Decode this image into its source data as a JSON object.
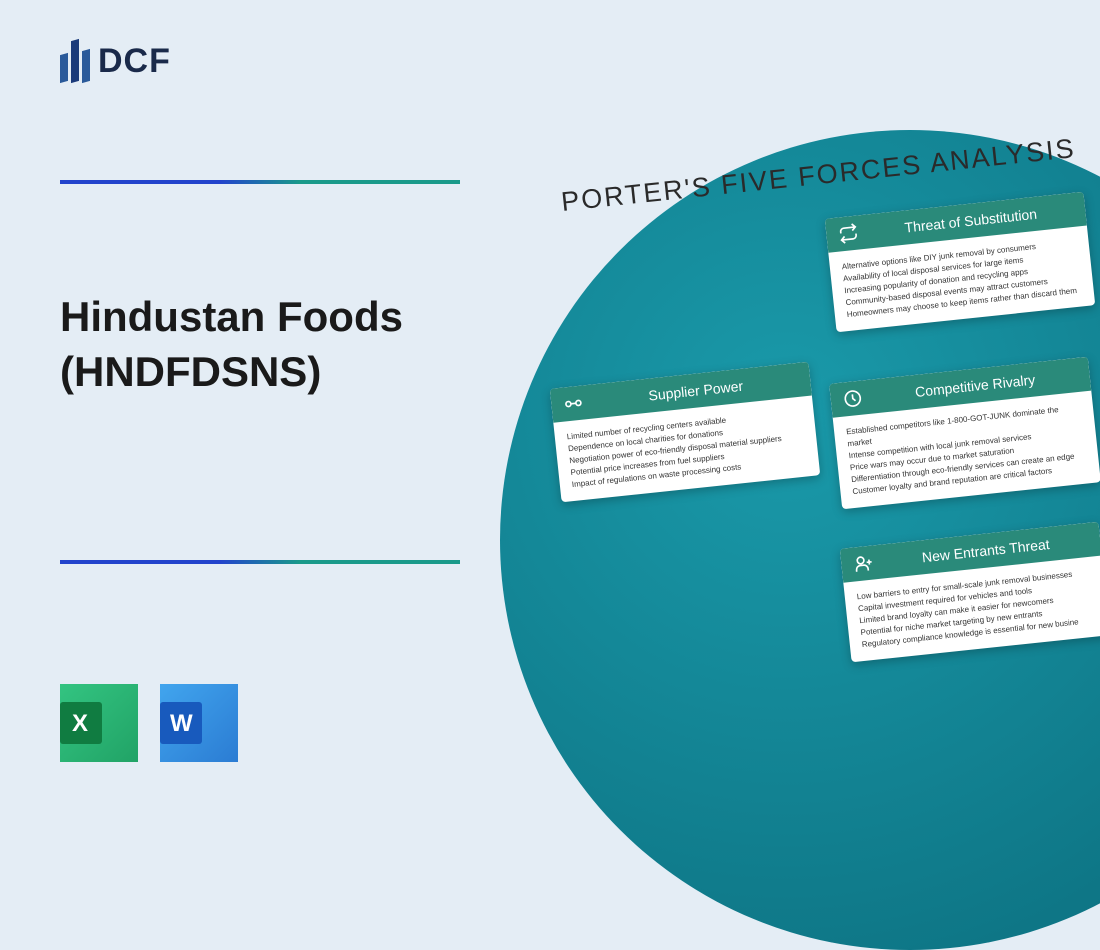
{
  "logo": {
    "text": "DCF"
  },
  "title_line1": "Hindustan Foods",
  "title_line2": "(HNDFDSNS)",
  "analysis_title": "PORTER'S FIVE FORCES ANALYSIS",
  "cards": {
    "substitution": {
      "title": "Threat of Substitution",
      "items": [
        "Alternative options like DIY junk removal by consumers",
        "Availability of local disposal services for large items",
        "Increasing popularity of donation and recycling apps",
        "Community-based disposal events may attract customers",
        "Homeowners may choose to keep items rather than discard them"
      ]
    },
    "supplier": {
      "title": "Supplier Power",
      "items": [
        "Limited number of recycling centers available",
        "Dependence on local charities for donations",
        "Negotiation power of eco-friendly disposal material suppliers",
        "Potential price increases from fuel suppliers",
        "Impact of regulations on waste processing costs"
      ]
    },
    "rivalry": {
      "title": "Competitive Rivalry",
      "items": [
        "Established competitors like 1-800-GOT-JUNK dominate the market",
        "Intense competition with local junk removal services",
        "Price wars may occur due to market saturation",
        "Differentiation through eco-friendly services can create an edge",
        "Customer loyalty and brand reputation are critical factors"
      ]
    },
    "entrants": {
      "title": "New Entrants Threat",
      "items": [
        "Low barriers to entry for small-scale junk removal businesses",
        "Capital investment required for vehicles and tools",
        "Limited brand loyalty can make it easier for newcomers",
        "Potential for niche market targeting by new entrants",
        "Regulatory compliance knowledge is essential for new busine"
      ]
    }
  }
}
